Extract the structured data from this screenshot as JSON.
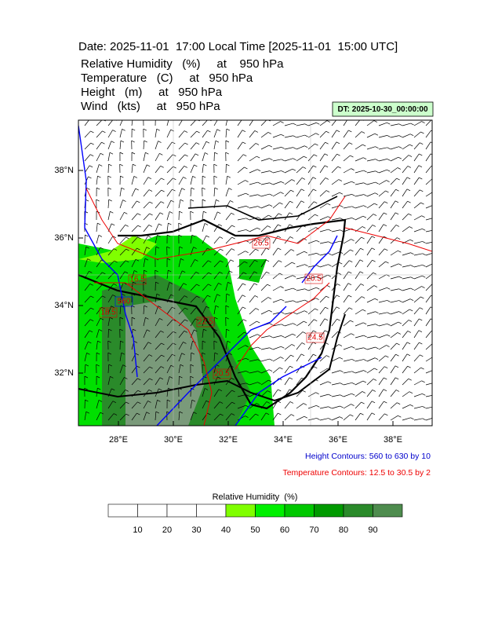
{
  "header": {
    "date_line": "Date: 2025-11-01  17:00 Local Time [2025-11-01  15:00 UTC]",
    "fields": [
      "Relative Humidity   (%)     at    950 hPa",
      "Temperature   (C)     at   950 hPa",
      "Height   (m)     at   950 hPa",
      "Wind   (kts)     at   950 hPa"
    ],
    "dt": "DT: 2025-10-30_00:00:00"
  },
  "map": {
    "lat_labels": [
      "38°N",
      "36°N",
      "34°N",
      "32°N"
    ],
    "lon_labels": [
      "28°E",
      "30°E",
      "32°E",
      "34°E",
      "36°E",
      "38°E"
    ],
    "contour_labels": [
      "26.5",
      "20.5",
      "16.5",
      "18.5",
      "560",
      "22.5",
      "20.5",
      "24.5"
    ]
  },
  "notes": [
    "Height Contours: 560 to 630 by 10",
    "Temperature Contours: 12.5 to 30.5 by 2"
  ],
  "colorbar": {
    "title": "Relative Humidity  (%)",
    "labels": [
      10,
      20,
      30,
      40,
      50,
      60,
      70,
      80,
      90
    ],
    "colors": [
      "#ffffff",
      "#ffffff",
      "#ffffff",
      "#ffffff",
      "#80ff00",
      "#00f000",
      "#00c800",
      "#009a00",
      "#2a8a2a",
      "#4e8c4e"
    ]
  }
}
